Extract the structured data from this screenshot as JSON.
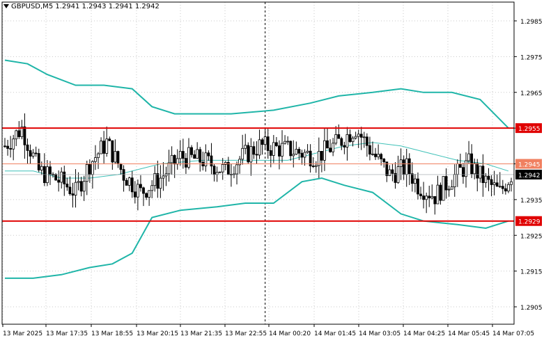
{
  "header": {
    "symbol": "GBPUSD,M5",
    "ohlc": "1.2941 1.2943 1.2941 1.2942"
  },
  "colors": {
    "background": "#ffffff",
    "grid": "#c8c8c8",
    "candle": "#000000",
    "bands": "#1fb5a8",
    "middle_band": "#3fc1b8",
    "resistance": "#e00000",
    "pivot": "#f08060",
    "current_price_tag": "#000000"
  },
  "chart_data": {
    "type": "candlestick",
    "title": "GBPUSD,M5",
    "y_ticks": [
      1.2985,
      1.2975,
      1.2965,
      1.2955,
      1.2945,
      1.2935,
      1.2925,
      1.2915,
      1.2905
    ],
    "y_tick_labels": [
      "1.2985",
      "1.2975",
      "1.2965",
      "1.2955",
      "1.2945",
      "1.2935",
      "1.2925",
      "1.2915",
      "1.2905"
    ],
    "ylim": [
      1.29,
      1.2994
    ],
    "x_tick_labels": [
      "13 Mar 2025",
      "13 Mar 17:35",
      "13 Mar 18:55",
      "13 Mar 20:15",
      "13 Mar 21:35",
      "13 Mar 22:55",
      "14 Mar 00:20",
      "14 Mar 01:45",
      "14 Mar 03:05",
      "14 Mar 04:25",
      "14 Mar 05:45",
      "14 Mar 07:05"
    ],
    "bar_count": 180,
    "horizontal_levels": [
      {
        "label": "1.2955",
        "value": 1.2955,
        "color": "#e00000",
        "role": "resistance"
      },
      {
        "label": "1.2945",
        "value": 1.2945,
        "color": "#f08060",
        "role": "pivot"
      },
      {
        "label": "1.2929",
        "value": 1.2929,
        "color": "#e00000",
        "role": "support"
      }
    ],
    "current_price": {
      "label": "1.2942",
      "value": 1.2942
    },
    "session_separator_bar_index": 92,
    "upper_band_points": [
      [
        0,
        1.2974
      ],
      [
        8,
        1.2973
      ],
      [
        15,
        1.297
      ],
      [
        25,
        1.2967
      ],
      [
        35,
        1.2967
      ],
      [
        45,
        1.2966
      ],
      [
        52,
        1.2961
      ],
      [
        60,
        1.2959
      ],
      [
        80,
        1.2959
      ],
      [
        95,
        1.296
      ],
      [
        108,
        1.2962
      ],
      [
        118,
        1.2964
      ],
      [
        130,
        1.2965
      ],
      [
        140,
        1.2966
      ],
      [
        148,
        1.2965
      ],
      [
        158,
        1.2965
      ],
      [
        168,
        1.2963
      ],
      [
        178,
        1.2955
      ]
    ],
    "lower_band_points": [
      [
        0,
        1.2913
      ],
      [
        10,
        1.2913
      ],
      [
        20,
        1.2914
      ],
      [
        30,
        1.2916
      ],
      [
        38,
        1.2917
      ],
      [
        45,
        1.292
      ],
      [
        52,
        1.293
      ],
      [
        62,
        1.2932
      ],
      [
        75,
        1.2933
      ],
      [
        85,
        1.2934
      ],
      [
        95,
        1.2934
      ],
      [
        105,
        1.294
      ],
      [
        112,
        1.2941
      ],
      [
        120,
        1.2939
      ],
      [
        130,
        1.2937
      ],
      [
        140,
        1.2931
      ],
      [
        148,
        1.2929
      ],
      [
        160,
        1.2928
      ],
      [
        170,
        1.2927
      ],
      [
        178,
        1.2929
      ]
    ],
    "middle_band_points": [
      [
        0,
        1.2943
      ],
      [
        10,
        1.2943
      ],
      [
        20,
        1.2941
      ],
      [
        30,
        1.2941
      ],
      [
        40,
        1.2942
      ],
      [
        55,
        1.2945
      ],
      [
        70,
        1.2946
      ],
      [
        85,
        1.2946
      ],
      [
        100,
        1.2946
      ],
      [
        110,
        1.2948
      ],
      [
        120,
        1.295
      ],
      [
        130,
        1.2951
      ],
      [
        140,
        1.295
      ],
      [
        150,
        1.2948
      ],
      [
        160,
        1.2946
      ],
      [
        170,
        1.2945
      ],
      [
        178,
        1.2943
      ]
    ]
  }
}
